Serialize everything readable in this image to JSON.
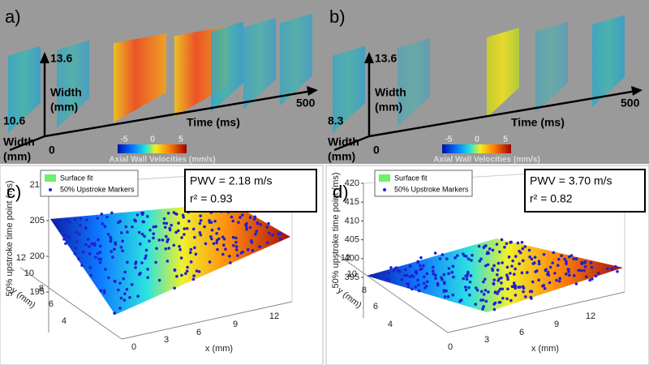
{
  "top_panels": [
    {
      "label": "a)",
      "height_value": "13.6",
      "depth_value": "10.6",
      "time_end": "500",
      "origin": "0",
      "height_axis": [
        "Width",
        "(mm)"
      ],
      "depth_axis": [
        "Width",
        "(mm)"
      ],
      "time_axis": "Time (ms)",
      "colorbar_ticks": [
        "-5",
        "0",
        "5"
      ],
      "colorbar_label": "Axial Wall Velocities (mm/s)"
    },
    {
      "label": "b)",
      "height_value": "13.6",
      "depth_value": "8.3",
      "time_end": "500",
      "origin": "0",
      "height_axis": [
        "Width",
        "(mm)"
      ],
      "depth_axis": [
        "Width",
        "(mm)"
      ],
      "time_axis": "Time (ms)",
      "colorbar_ticks": [
        "-5",
        "0",
        "5"
      ],
      "colorbar_label": "Axial Wall Velocities (mm/s)"
    }
  ],
  "bottom_panels": [
    {
      "label": "c)",
      "legend": [
        "Surface fit",
        "50% Upstroke Markers"
      ],
      "stats": [
        "PWV = 2.18 m/s",
        "r² = 0.93"
      ],
      "z_label": "50% upstroke time point (ms)",
      "z_ticks": [
        "195",
        "200",
        "205",
        "210"
      ],
      "y_label": "y (mm)",
      "y_ticks": [
        "12",
        "10",
        "8",
        "6",
        "4"
      ],
      "x_label": "x (mm)",
      "x_ticks": [
        "0",
        "3",
        "6",
        "9",
        "12"
      ]
    },
    {
      "label": "d)",
      "legend": [
        "Surface fit",
        "50% Upstroke Markers"
      ],
      "stats": [
        "PWV = 3.70 m/s",
        "r² = 0.82"
      ],
      "z_label": "50% upstroke time point (ms)",
      "z_ticks": [
        "395",
        "400",
        "405",
        "410",
        "415",
        "420"
      ],
      "y_label": "y (mm)",
      "y_ticks": [
        "12",
        "10",
        "8",
        "6",
        "4"
      ],
      "x_label": "x (mm)",
      "x_ticks": [
        "0",
        "3",
        "6",
        "9",
        "12"
      ]
    }
  ]
}
